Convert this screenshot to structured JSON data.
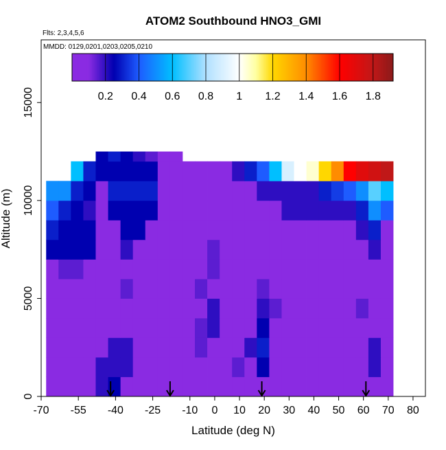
{
  "chart_data": {
    "type": "heatmap",
    "title": "ATOM2 Southbound HNO3_GMI",
    "subtitle": "Flts: 2,3,4,5,6",
    "annotation": "MMDD: 0129,0201,0203,0205,0210",
    "xlabel": "Latitude (deg N)",
    "ylabel": "Altitude (m)",
    "xlim": [
      -70,
      85
    ],
    "ylim": [
      0,
      18200
    ],
    "xticks": [
      -70,
      -55,
      -40,
      -25,
      -10,
      0,
      10,
      20,
      30,
      40,
      50,
      60,
      70,
      80
    ],
    "yticks": [
      0,
      5000,
      10000,
      15000
    ],
    "x_edges": [
      -68,
      -63,
      -58,
      -53,
      -48,
      -43,
      -38,
      -33,
      -28,
      -23,
      -18,
      -13,
      -8,
      -3,
      2,
      7,
      12,
      17,
      22,
      27,
      32,
      37,
      42,
      47,
      52,
      57,
      62,
      67,
      72
    ],
    "y_edges": [
      0,
      1000,
      2000,
      3000,
      4000,
      5000,
      6000,
      7000,
      8000,
      9000,
      10000,
      11000,
      12000,
      12500
    ],
    "z": [
      [
        0.1,
        0.1,
        0.1,
        0.1,
        0.2,
        0.25,
        0.1,
        0.1,
        0.1,
        0.1,
        0.1,
        0.1,
        0.1,
        0.1,
        0.1,
        0.1,
        0.1,
        0.1,
        0.1,
        0.1,
        0.1,
        0.1,
        0.1,
        0.1,
        0.1,
        0.1,
        0.1,
        0.1
      ],
      [
        0.1,
        0.1,
        0.1,
        0.1,
        0.2,
        0.2,
        0.2,
        0.1,
        0.1,
        0.1,
        0.1,
        0.1,
        0.1,
        0.1,
        0.1,
        0.15,
        0.1,
        0.25,
        0.1,
        0.1,
        0.1,
        0.1,
        0.1,
        0.1,
        0.1,
        0.1,
        0.2,
        0.1
      ],
      [
        0.1,
        0.1,
        0.1,
        0.1,
        0.1,
        0.2,
        0.2,
        0.1,
        0.1,
        0.1,
        0.1,
        0.1,
        0.15,
        0.1,
        0.1,
        0.1,
        0.2,
        0.3,
        0.1,
        0.1,
        0.1,
        0.1,
        0.1,
        0.1,
        0.1,
        0.1,
        0.2,
        0.1
      ],
      [
        0.1,
        0.1,
        0.1,
        0.1,
        0.1,
        0.1,
        0.1,
        0.1,
        0.1,
        0.1,
        0.1,
        0.1,
        0.15,
        0.2,
        0.1,
        0.1,
        0.1,
        0.25,
        0.1,
        0.1,
        0.1,
        0.1,
        0.1,
        0.1,
        0.1,
        0.1,
        0.1,
        0.1
      ],
      [
        0.1,
        0.1,
        0.1,
        0.1,
        0.1,
        0.1,
        0.1,
        0.1,
        0.1,
        0.1,
        0.1,
        0.1,
        0.1,
        0.2,
        0.1,
        0.1,
        0.1,
        0.2,
        0.15,
        0.1,
        0.1,
        0.1,
        0.1,
        0.1,
        0.1,
        0.15,
        0.1,
        0.1
      ],
      [
        0.1,
        0.1,
        0.1,
        0.1,
        0.1,
        0.1,
        0.15,
        0.1,
        0.1,
        0.1,
        0.1,
        0.1,
        0.15,
        0.1,
        0.1,
        0.1,
        0.1,
        0.15,
        0.1,
        0.1,
        0.1,
        0.1,
        0.1,
        0.1,
        0.1,
        0.1,
        0.1,
        0.1
      ],
      [
        0.1,
        0.15,
        0.15,
        0.1,
        0.1,
        0.1,
        0.1,
        0.1,
        0.1,
        0.1,
        0.1,
        0.1,
        0.1,
        0.15,
        0.1,
        0.1,
        0.1,
        0.1,
        0.1,
        0.1,
        0.1,
        0.1,
        0.1,
        0.1,
        0.1,
        0.1,
        0.1,
        0.1
      ],
      [
        0.25,
        0.25,
        0.25,
        0.25,
        0.1,
        0.1,
        0.2,
        0.1,
        0.1,
        0.1,
        0.1,
        0.1,
        0.1,
        0.15,
        0.1,
        0.1,
        0.1,
        0.1,
        0.1,
        0.1,
        0.1,
        0.1,
        0.1,
        0.1,
        0.1,
        0.1,
        0.2,
        0.1
      ],
      [
        0.3,
        0.25,
        0.25,
        0.25,
        0.1,
        0.1,
        0.25,
        0.25,
        0.1,
        0.1,
        0.1,
        0.1,
        0.1,
        0.1,
        0.1,
        0.1,
        0.1,
        0.1,
        0.1,
        0.1,
        0.1,
        0.1,
        0.1,
        0.1,
        0.1,
        0.2,
        0.3,
        0.1
      ],
      [
        0.4,
        0.3,
        0.25,
        0.2,
        0.1,
        0.25,
        0.25,
        0.25,
        0.25,
        0.1,
        0.1,
        0.1,
        0.1,
        0.1,
        0.1,
        0.1,
        0.1,
        0.1,
        0.1,
        0.2,
        0.2,
        0.2,
        0.2,
        0.2,
        0.2,
        0.3,
        0.5,
        0.4
      ],
      [
        0.5,
        0.5,
        0.3,
        0.25,
        0.1,
        0.3,
        0.3,
        0.3,
        0.3,
        0.1,
        0.1,
        0.1,
        0.1,
        0.1,
        0.1,
        0.1,
        0.1,
        0.2,
        0.2,
        0.2,
        0.2,
        0.2,
        0.3,
        0.35,
        0.4,
        0.5,
        0.7,
        0.6
      ],
      [
        null,
        null,
        0.6,
        0.3,
        0.25,
        0.25,
        0.25,
        0.25,
        0.25,
        0.1,
        0.1,
        0.1,
        0.1,
        0.1,
        0.1,
        0.2,
        0.3,
        0.4,
        0.6,
        0.9,
        1.0,
        1.05,
        1.2,
        1.4,
        1.6,
        1.7,
        1.75,
        1.8
      ],
      [
        null,
        null,
        null,
        null,
        0.25,
        0.3,
        0.25,
        0.2,
        0.15,
        0.1,
        0.1,
        null,
        null,
        null,
        null,
        null,
        null,
        null,
        null,
        null,
        null,
        null,
        null,
        null,
        null,
        null,
        null,
        null
      ]
    ],
    "colorbar": {
      "lim": [
        0,
        1.92
      ],
      "ticks": [
        0.2,
        0.4,
        0.6,
        0.8,
        1.0,
        1.2,
        1.4,
        1.6,
        1.8
      ],
      "stops": [
        0,
        0.1,
        0.25,
        0.4,
        0.6,
        0.8,
        1.0,
        1.1,
        1.2,
        1.4,
        1.6,
        1.8,
        1.92
      ],
      "colors": [
        "#8a2be2",
        "#8a2be2",
        "#0000b0",
        "#1e5cff",
        "#00bfff",
        "#b0e0ff",
        "#ffffff",
        "#ffffa0",
        "#ffd700",
        "#ff8c00",
        "#ff0000",
        "#c01818",
        "#8b1a1a"
      ]
    },
    "arrows_x": [
      -42,
      -18,
      19,
      61
    ]
  }
}
